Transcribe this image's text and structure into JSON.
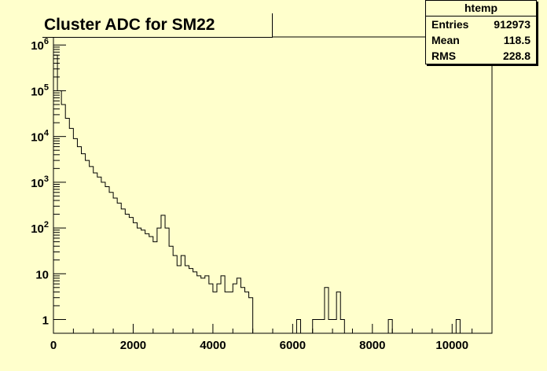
{
  "chart_data": {
    "type": "histogram",
    "title": "Cluster ADC for SM22",
    "xlabel": "",
    "ylabel": "",
    "xlim": [
      0,
      11000
    ],
    "ylim": [
      0.5,
      1500000
    ],
    "yscale": "log",
    "bin_width": 100,
    "x_ticks": [
      0,
      2000,
      4000,
      6000,
      8000,
      10000
    ],
    "x_tick_labels": [
      "0",
      "2000",
      "4000",
      "6000",
      "8000",
      "10000"
    ],
    "y_ticks": [
      {
        "value": 1,
        "base": "1",
        "exp": ""
      },
      {
        "value": 10,
        "base": "10",
        "exp": ""
      },
      {
        "value": 100,
        "base": "10",
        "exp": "2"
      },
      {
        "value": 1000,
        "base": "10",
        "exp": "3"
      },
      {
        "value": 10000,
        "base": "10",
        "exp": "4"
      },
      {
        "value": 100000,
        "base": "10",
        "exp": "5"
      },
      {
        "value": 1000000,
        "base": "10",
        "exp": "6"
      }
    ],
    "counts": [
      600000,
      100000,
      50000,
      25000,
      15000,
      9000,
      6000,
      4200,
      3000,
      2200,
      1600,
      1300,
      1000,
      800,
      600,
      450,
      350,
      260,
      200,
      170,
      130,
      100,
      90,
      75,
      65,
      50,
      100,
      190,
      100,
      40,
      25,
      15,
      25,
      15,
      13,
      11,
      9,
      8,
      9,
      6,
      4,
      6,
      9,
      4,
      4,
      6,
      8,
      5,
      4,
      3,
      0,
      0,
      0,
      0,
      0,
      0,
      0,
      0,
      0,
      0,
      0,
      1,
      0,
      0,
      0,
      1,
      1,
      1,
      5,
      1,
      1,
      4,
      1,
      0,
      0,
      0,
      0,
      0,
      0,
      0,
      0,
      0,
      0,
      0,
      1,
      0,
      0,
      0,
      0,
      0,
      0,
      0,
      0,
      0,
      0,
      0,
      0,
      0,
      0,
      0,
      0,
      1,
      0,
      0,
      0,
      0,
      0,
      0,
      0,
      0
    ],
    "grid": false,
    "legend": "none"
  },
  "stats": {
    "name": "htemp",
    "entries_label": "Entries",
    "entries_value": "912973",
    "mean_label": "Mean",
    "mean_value": "118.5",
    "rms_label": "RMS",
    "rms_value": "228.8"
  }
}
